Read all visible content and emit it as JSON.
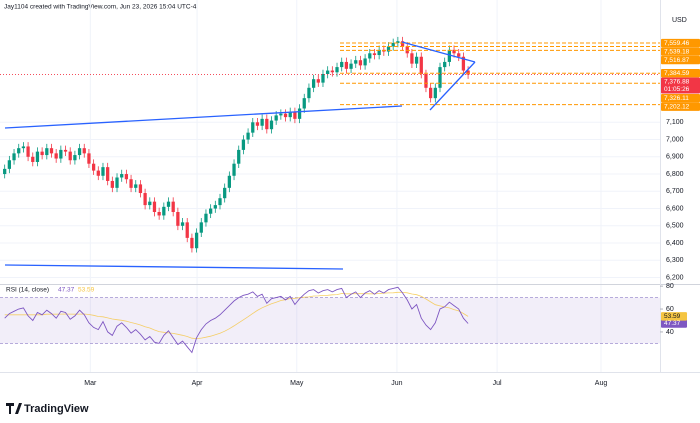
{
  "attribution": "Jay1104 created with TradingView.com, Jun 23, 2026 15:04 UTC-4",
  "footer": "TradingView",
  "chart_data": [
    {
      "type": "candlestick",
      "currency": "USD",
      "up_color": "#089981",
      "down_color": "#f23645",
      "grid": true,
      "open": [
        6800,
        6830,
        6880,
        6920,
        6950,
        6960,
        6900,
        6870,
        6930,
        6910,
        6950,
        6920,
        6890,
        6940,
        6930,
        6880,
        6910,
        6950,
        6920,
        6860,
        6820,
        6790,
        6840,
        6760,
        6720,
        6780,
        6800,
        6770,
        6720,
        6740,
        6690,
        6620,
        6640,
        6580,
        6560,
        6610,
        6640,
        6580,
        6500,
        6520,
        6430,
        6370,
        6460,
        6520,
        6570,
        6600,
        6620,
        6660,
        6720,
        6790,
        6860,
        6940,
        7000,
        7040,
        7100,
        7080,
        7120,
        7060,
        7110,
        7140,
        7150,
        7130,
        7160,
        7120,
        7180,
        7240,
        7300,
        7350,
        7330,
        7380,
        7400,
        7390,
        7420,
        7450,
        7410,
        7440,
        7460,
        7430,
        7470,
        7500,
        7490,
        7520,
        7510,
        7540,
        7560,
        7570,
        7540,
        7500,
        7440,
        7480,
        7380,
        7300,
        7240,
        7300,
        7420,
        7450,
        7520,
        7500,
        7480,
        7400
      ],
      "high": [
        6855,
        6905,
        6945,
        6975,
        6985,
        6985,
        6925,
        6955,
        6955,
        6975,
        6975,
        6945,
        6965,
        6965,
        6955,
        6935,
        6975,
        6975,
        6945,
        6885,
        6845,
        6865,
        6865,
        6785,
        6805,
        6825,
        6825,
        6795,
        6765,
        6765,
        6715,
        6665,
        6665,
        6605,
        6635,
        6665,
        6665,
        6605,
        6545,
        6545,
        6455,
        6485,
        6545,
        6595,
        6625,
        6645,
        6685,
        6745,
        6815,
        6885,
        6965,
        7025,
        7065,
        7125,
        7125,
        7145,
        7145,
        7135,
        7165,
        7175,
        7175,
        7185,
        7185,
        7205,
        7265,
        7325,
        7375,
        7375,
        7405,
        7425,
        7425,
        7445,
        7475,
        7475,
        7465,
        7485,
        7485,
        7495,
        7525,
        7525,
        7545,
        7545,
        7565,
        7585,
        7595,
        7595,
        7565,
        7525,
        7505,
        7505,
        7405,
        7325,
        7325,
        7445,
        7475,
        7545,
        7545,
        7525,
        7505,
        7425
      ],
      "low": [
        6775,
        6805,
        6855,
        6895,
        6925,
        6875,
        6845,
        6845,
        6885,
        6885,
        6895,
        6865,
        6865,
        6905,
        6855,
        6855,
        6885,
        6895,
        6835,
        6795,
        6765,
        6765,
        6735,
        6695,
        6695,
        6755,
        6745,
        6695,
        6695,
        6665,
        6595,
        6595,
        6555,
        6535,
        6535,
        6585,
        6555,
        6475,
        6475,
        6405,
        6345,
        6345,
        6435,
        6495,
        6545,
        6575,
        6595,
        6635,
        6695,
        6765,
        6835,
        6915,
        6975,
        7015,
        7055,
        7055,
        7035,
        7035,
        7085,
        7115,
        7105,
        7105,
        7095,
        7095,
        7155,
        7215,
        7275,
        7305,
        7305,
        7355,
        7365,
        7365,
        7395,
        7385,
        7385,
        7415,
        7405,
        7405,
        7445,
        7465,
        7465,
        7485,
        7485,
        7515,
        7535,
        7515,
        7475,
        7415,
        7415,
        7355,
        7275,
        7215,
        7215,
        7275,
        7395,
        7425,
        7475,
        7455,
        7375,
        7352
      ],
      "close": [
        6830,
        6880,
        6920,
        6950,
        6960,
        6900,
        6870,
        6930,
        6910,
        6950,
        6920,
        6890,
        6940,
        6930,
        6880,
        6910,
        6950,
        6920,
        6860,
        6820,
        6790,
        6840,
        6760,
        6720,
        6780,
        6800,
        6770,
        6720,
        6740,
        6690,
        6620,
        6640,
        6580,
        6560,
        6610,
        6640,
        6580,
        6500,
        6520,
        6430,
        6370,
        6460,
        6520,
        6570,
        6600,
        6620,
        6660,
        6720,
        6790,
        6860,
        6940,
        7000,
        7040,
        7100,
        7080,
        7120,
        7060,
        7110,
        7140,
        7150,
        7130,
        7160,
        7120,
        7180,
        7240,
        7300,
        7350,
        7330,
        7380,
        7400,
        7390,
        7420,
        7450,
        7410,
        7440,
        7460,
        7430,
        7470,
        7500,
        7490,
        7520,
        7510,
        7540,
        7560,
        7570,
        7540,
        7500,
        7440,
        7480,
        7380,
        7300,
        7240,
        7300,
        7420,
        7450,
        7520,
        7500,
        7480,
        7400,
        7376.88
      ],
      "ylim": [
        6180,
        7780
      ],
      "yticks": [
        {
          "value": 6200,
          "label": "6,200"
        },
        {
          "value": 6300,
          "label": "6,300"
        },
        {
          "value": 6400,
          "label": "6,400"
        },
        {
          "value": 6500,
          "label": "6,500"
        },
        {
          "value": 6600,
          "label": "6,600"
        },
        {
          "value": 6700,
          "label": "6,700"
        },
        {
          "value": 6800,
          "label": "6,800"
        },
        {
          "value": 6900,
          "label": "6,900"
        },
        {
          "value": 7000,
          "label": "7,000"
        },
        {
          "value": 7100,
          "label": "7,100"
        }
      ],
      "xlim": [
        -1,
        140
      ],
      "xticks": [
        {
          "value": 18.3,
          "label": "Mar"
        },
        {
          "value": 41.1,
          "label": "Apr"
        },
        {
          "value": 62.4,
          "label": "May"
        },
        {
          "value": 83.8,
          "label": "Jun"
        },
        {
          "value": 105.2,
          "label": "Jul"
        },
        {
          "value": 127.4,
          "label": "Aug"
        }
      ],
      "price_levels": [
        {
          "value": 7559.46,
          "label": "7,559.46",
          "color": "#ff9800"
        },
        {
          "value": 7539.18,
          "label": "7,539.18",
          "color": "#ff9800"
        },
        {
          "value": 7516.87,
          "label": "7,516.87",
          "color": "#ff9800"
        },
        {
          "value": 7384.59,
          "label": "7,384.59",
          "color": "#ff9800"
        },
        {
          "value": 7376.88,
          "label": "7,376.88",
          "color": "#f23645"
        },
        {
          "value": 7326.11,
          "label": "7,326.11",
          "color": "#ff9800"
        },
        {
          "value": 7202.12,
          "label": "7,202.12",
          "color": "#ff9800"
        }
      ],
      "countdown": "01:05:26"
    },
    {
      "type": "line",
      "title": "RSI (14, close)",
      "band": [
        30,
        70
      ],
      "series": [
        {
          "color": "#7e57c2",
          "values": [
            52,
            56,
            58,
            60,
            61,
            54,
            50,
            57,
            55,
            59,
            56,
            52,
            58,
            57,
            51,
            54,
            59,
            55,
            48,
            44,
            42,
            49,
            40,
            37,
            45,
            48,
            44,
            39,
            42,
            38,
            33,
            36,
            31,
            30,
            37,
            41,
            35,
            29,
            32,
            27,
            22,
            35,
            42,
            47,
            50,
            52,
            55,
            59,
            63,
            67,
            70,
            72,
            73,
            75,
            71,
            73,
            65,
            69,
            70,
            71,
            68,
            71,
            64,
            69,
            73,
            76,
            77,
            74,
            76,
            77,
            75,
            77,
            78,
            70,
            73,
            75,
            70,
            74,
            76,
            73,
            76,
            74,
            77,
            78,
            79,
            74,
            68,
            60,
            64,
            52,
            46,
            42,
            48,
            60,
            62,
            66,
            63,
            60,
            52,
            47.37
          ]
        },
        {
          "color": "#f5c542",
          "values": [
            55,
            55,
            55,
            55,
            55,
            55,
            55,
            55,
            55,
            55.5,
            55.5,
            55.5,
            55.6,
            55.7,
            55.6,
            55.5,
            55.6,
            55.7,
            55.2,
            54.5,
            53.5,
            53.2,
            52.3,
            51.3,
            50.7,
            50.2,
            49.4,
            48.2,
            47.3,
            46.1,
            44.5,
            43.4,
            41.7,
            40.3,
            39.7,
            39.2,
            38.7,
            37.9,
            37.1,
            36.0,
            34.5,
            34.2,
            34.6,
            35.4,
            36.3,
            37.5,
            38.9,
            40.6,
            42.8,
            45.3,
            48.0,
            50.6,
            53.3,
            56.2,
            58.8,
            61.1,
            62.9,
            64.6,
            66.0,
            67.5,
            68.2,
            69.2,
            69.4,
            69.9,
            70.3,
            70.6,
            71.4,
            71.5,
            71.9,
            72.0,
            72.4,
            72.6,
            73.6,
            73.3,
            73.3,
            73.5,
            73.4,
            73.4,
            73.3,
            73.2,
            73.6,
            73.8,
            74.1,
            74.2,
            74.6,
            74.5,
            74.2,
            73.1,
            72.5,
            71.0,
            68.8,
            66.2,
            63.8,
            62.7,
            61.8,
            61.0,
            59.5,
            58.4,
            56.1,
            53.59
          ]
        }
      ],
      "ylim": [
        5,
        81
      ],
      "yticks": [
        40,
        60,
        80
      ],
      "xlim": [
        -1,
        140
      ]
    }
  ]
}
